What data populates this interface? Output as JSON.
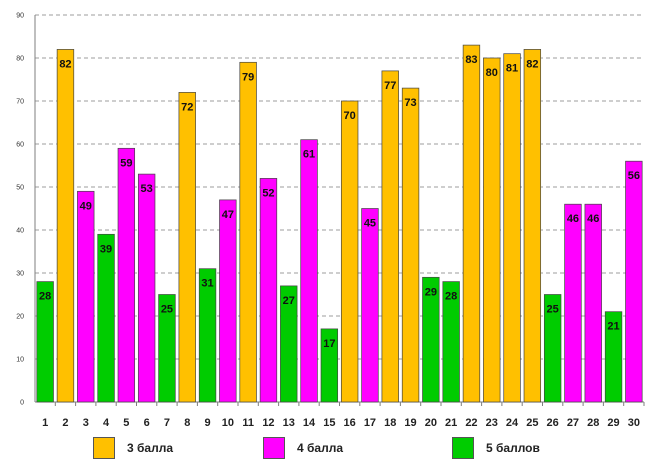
{
  "chart_data": {
    "type": "bar",
    "title": "",
    "xlabel": "",
    "ylabel": "",
    "ylim": [
      0,
      90
    ],
    "yticks": [
      0,
      10,
      20,
      30,
      40,
      50,
      60,
      70,
      80,
      90
    ],
    "grid": true,
    "categories": [
      "1",
      "2",
      "3",
      "4",
      "5",
      "6",
      "7",
      "8",
      "9",
      "10",
      "11",
      "12",
      "13",
      "14",
      "15",
      "16",
      "17",
      "18",
      "19",
      "20",
      "21",
      "22",
      "23",
      "24",
      "25",
      "26",
      "27",
      "28",
      "29",
      "30"
    ],
    "values": [
      28,
      82,
      49,
      39,
      59,
      53,
      25,
      72,
      31,
      47,
      79,
      52,
      27,
      61,
      17,
      70,
      45,
      77,
      73,
      29,
      28,
      83,
      80,
      81,
      82,
      25,
      46,
      46,
      21,
      56
    ],
    "groups": [
      "5",
      "3",
      "4",
      "5",
      "4",
      "4",
      "5",
      "3",
      "5",
      "4",
      "3",
      "4",
      "5",
      "4",
      "5",
      "3",
      "4",
      "3",
      "3",
      "5",
      "5",
      "3",
      "3",
      "3",
      "3",
      "5",
      "4",
      "4",
      "5",
      "4"
    ],
    "legend": [
      {
        "key": "3",
        "label": "3 балла",
        "color": "#FFC000"
      },
      {
        "key": "4",
        "label": "4 балла",
        "color": "#FF00FF"
      },
      {
        "key": "5",
        "label": "5 баллов",
        "color": "#00CC00"
      }
    ],
    "legend_position": "bottom"
  }
}
